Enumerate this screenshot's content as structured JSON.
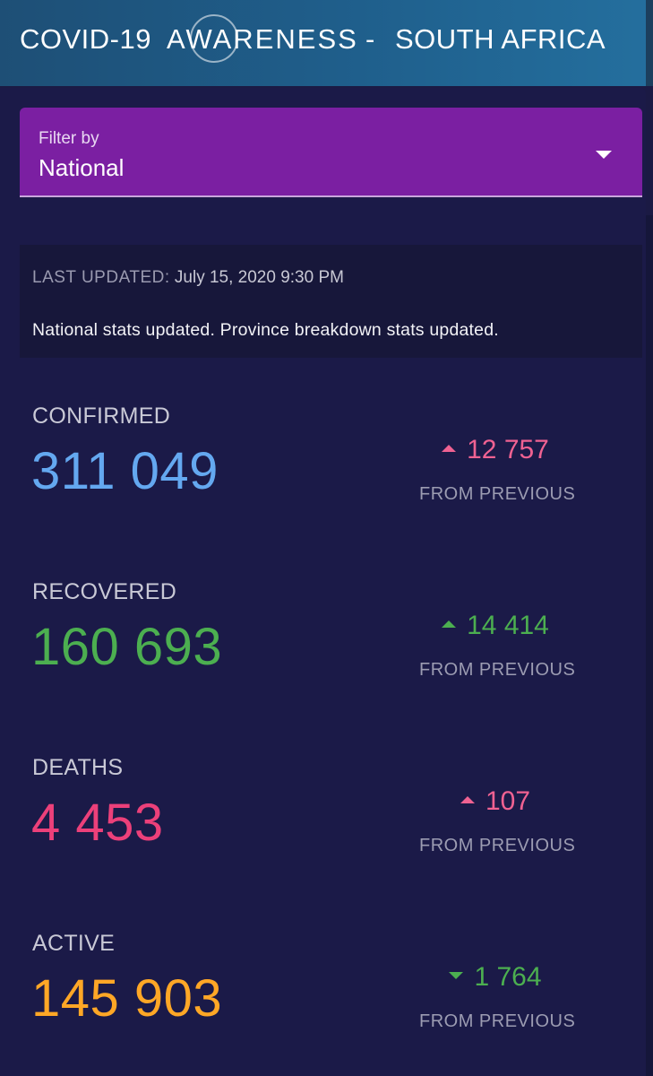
{
  "header": {
    "left_title": "COVID-19",
    "logo_text": "AWARENESS",
    "separator": "-",
    "right_title": "SOUTH AFRICA"
  },
  "filter": {
    "label": "Filter by",
    "value": "National"
  },
  "update": {
    "label": "LAST UPDATED:",
    "time": "July 15, 2020 9:30 PM",
    "message": "National stats updated. Province breakdown stats updated."
  },
  "stats": [
    {
      "label": "CONFIRMED",
      "value": "311 049",
      "delta": "12 757",
      "direction": "up",
      "delta_note": "FROM PREVIOUS",
      "value_color": "#64a8f0",
      "delta_color": "#f06292"
    },
    {
      "label": "RECOVERED",
      "value": "160 693",
      "delta": "14 414",
      "direction": "up",
      "delta_note": "FROM PREVIOUS",
      "value_color": "#4caf50",
      "delta_color": "#4caf50"
    },
    {
      "label": "DEATHS",
      "value": "4 453",
      "delta": "107",
      "direction": "up",
      "delta_note": "FROM PREVIOUS",
      "value_color": "#ec407a",
      "delta_color": "#f06292"
    },
    {
      "label": "ACTIVE",
      "value": "145 903",
      "delta": "1 764",
      "direction": "down",
      "delta_note": "FROM PREVIOUS",
      "value_color": "#ffa726",
      "delta_color": "#4caf50"
    }
  ],
  "icons": {
    "dropdown": "caret-down-icon",
    "logo": "awareness-logo-circle"
  }
}
